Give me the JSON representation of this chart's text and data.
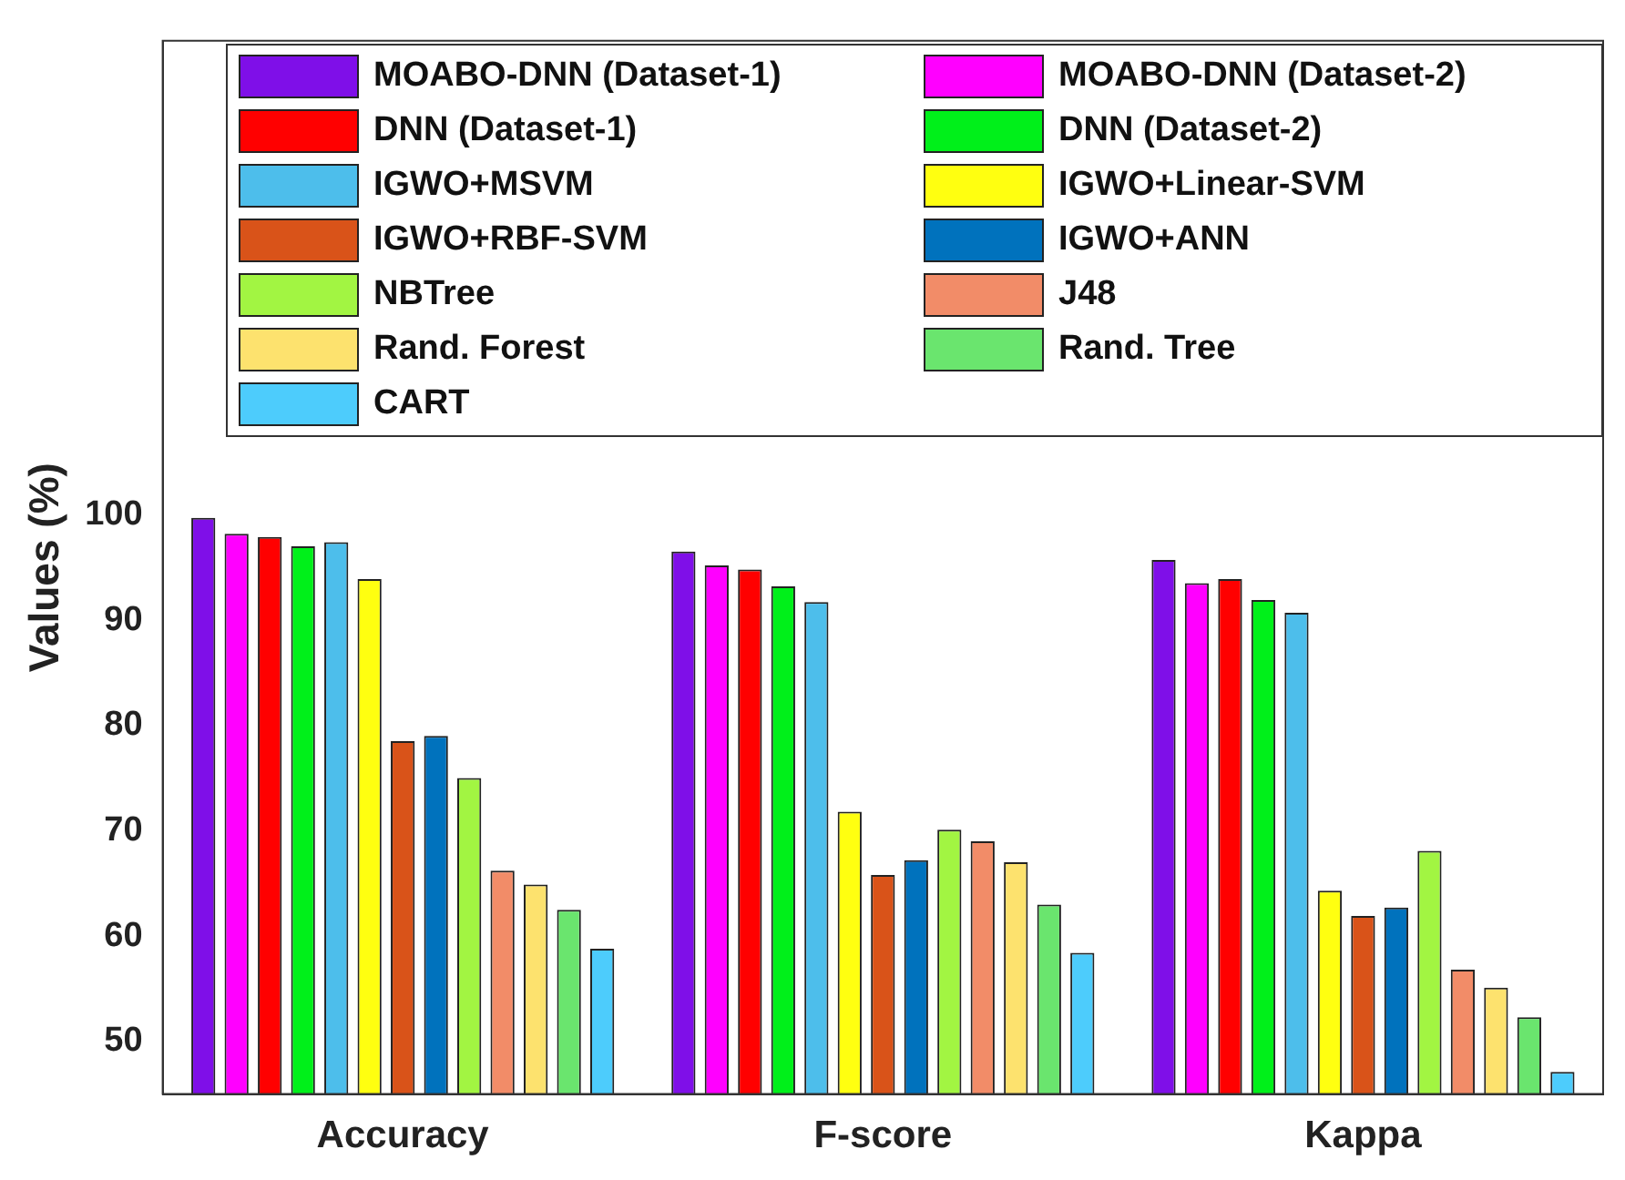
{
  "chart_data": {
    "type": "bar",
    "ylabel": "Values (%)",
    "categories": [
      "Accuracy",
      "F-score",
      "Kappa"
    ],
    "ylim": [
      45,
      145
    ],
    "yticks": [
      50,
      60,
      70,
      80,
      90,
      100
    ],
    "grid": false,
    "legend": "top",
    "series": [
      {
        "name": "MOABO-DNN (Dataset-1)",
        "color": "#7f0fe8",
        "values": [
          99.7,
          96.5,
          95.7
        ]
      },
      {
        "name": "MOABO-DNN (Dataset-2)",
        "color": "#ff00ff",
        "values": [
          98.2,
          95.2,
          93.5
        ]
      },
      {
        "name": "DNN (Dataset-1)",
        "color": "#ff0000",
        "values": [
          97.9,
          94.8,
          93.9
        ]
      },
      {
        "name": "DNN (Dataset-2)",
        "color": "#00f01a",
        "values": [
          97.0,
          93.2,
          91.9
        ]
      },
      {
        "name": "IGWO+MSVM",
        "color": "#4dbeeb",
        "values": [
          97.4,
          91.7,
          90.7
        ]
      },
      {
        "name": "IGWO+Linear-SVM",
        "color": "#ffff10",
        "values": [
          93.9,
          71.8,
          64.3
        ]
      },
      {
        "name": "IGWO+RBF-SVM",
        "color": "#d95319",
        "values": [
          78.5,
          65.8,
          61.9
        ]
      },
      {
        "name": "IGWO+ANN",
        "color": "#0072bd",
        "values": [
          79.0,
          67.2,
          62.7
        ]
      },
      {
        "name": "NBTree",
        "color": "#a2f542",
        "values": [
          75.0,
          70.1,
          68.1
        ]
      },
      {
        "name": "J48",
        "color": "#f28c68",
        "values": [
          66.2,
          69.0,
          56.8
        ]
      },
      {
        "name": "Rand. Forest",
        "color": "#fde26e",
        "values": [
          64.9,
          67.0,
          55.1
        ]
      },
      {
        "name": "Rand. Tree",
        "color": "#6ae56e",
        "values": [
          62.5,
          63.0,
          52.3
        ]
      },
      {
        "name": "CART",
        "color": "#4dccfc",
        "values": [
          58.8,
          58.4,
          47.1
        ]
      }
    ]
  }
}
